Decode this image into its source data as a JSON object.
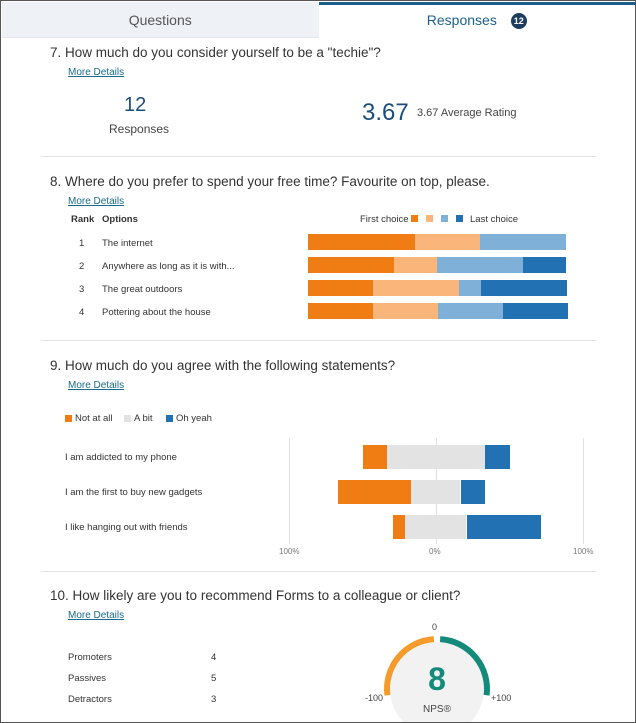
{
  "tabs": {
    "questions": "Questions",
    "responses": "Responses",
    "responses_count": "12"
  },
  "q7": {
    "title": "7.  How much do you consider yourself to be a \"techie\"?",
    "more": "More Details",
    "responses_value": "12",
    "responses_label": "Responses",
    "average_value": "3.67",
    "average_label": "3.67 Average Rating"
  },
  "q8": {
    "title": "8.  Where do you prefer to spend your free time? Favourite on top, please.",
    "more": "More Details",
    "col_rank": "Rank",
    "col_options": "Options",
    "legend_first": "First choice",
    "legend_last": "Last choice",
    "rows": [
      {
        "rank": "1",
        "option": "The internet"
      },
      {
        "rank": "2",
        "option": "Anywhere as long as it is with..."
      },
      {
        "rank": "3",
        "option": "The great outdoors"
      },
      {
        "rank": "4",
        "option": "Pottering about the house"
      }
    ],
    "colors": [
      "#f07d14",
      "#f9b57a",
      "#7fb1d8",
      "#2271b3"
    ],
    "shares": [
      [
        0.416,
        0.25,
        0.334,
        0.0
      ],
      [
        0.334,
        0.166,
        0.334,
        0.166
      ],
      [
        0.25,
        0.334,
        0.084,
        0.332
      ],
      [
        0.25,
        0.25,
        0.25,
        0.25
      ]
    ]
  },
  "q9": {
    "title": "9.  How much do you agree with the following statements?",
    "more": "More Details",
    "legend": [
      "Not at all",
      "A bit",
      "Oh yeah"
    ],
    "colors": [
      "#f07d14",
      "#e3e3e3",
      "#2271b3"
    ],
    "axis_left": "100%",
    "axis_center": "0%",
    "axis_right": "100%",
    "rows": [
      {
        "label": "I am addicted to my phone",
        "not": 0.166,
        "bit": 0.666,
        "yeah": 0.168
      },
      {
        "label": "I am the first to buy new gadgets",
        "not": 0.5,
        "bit": 0.334,
        "yeah": 0.166
      },
      {
        "label": "I like hanging out with friends",
        "not": 0.084,
        "bit": 0.416,
        "yeah": 0.5
      }
    ]
  },
  "q10": {
    "title": "10.  How likely are you to recommend Forms to a colleague or client?",
    "more": "More Details",
    "rows": [
      {
        "label": "Promoters",
        "value": "4"
      },
      {
        "label": "Passives",
        "value": "5"
      },
      {
        "label": "Detractors",
        "value": "3"
      }
    ],
    "nps_value": "8",
    "nps_label": "NPS®",
    "gauge_min": "-100",
    "gauge_zero": "0",
    "gauge_max": "+100",
    "colors": {
      "detractor": "#f59b2b",
      "promoter": "#138a7a",
      "value": "#138a7a"
    }
  }
}
